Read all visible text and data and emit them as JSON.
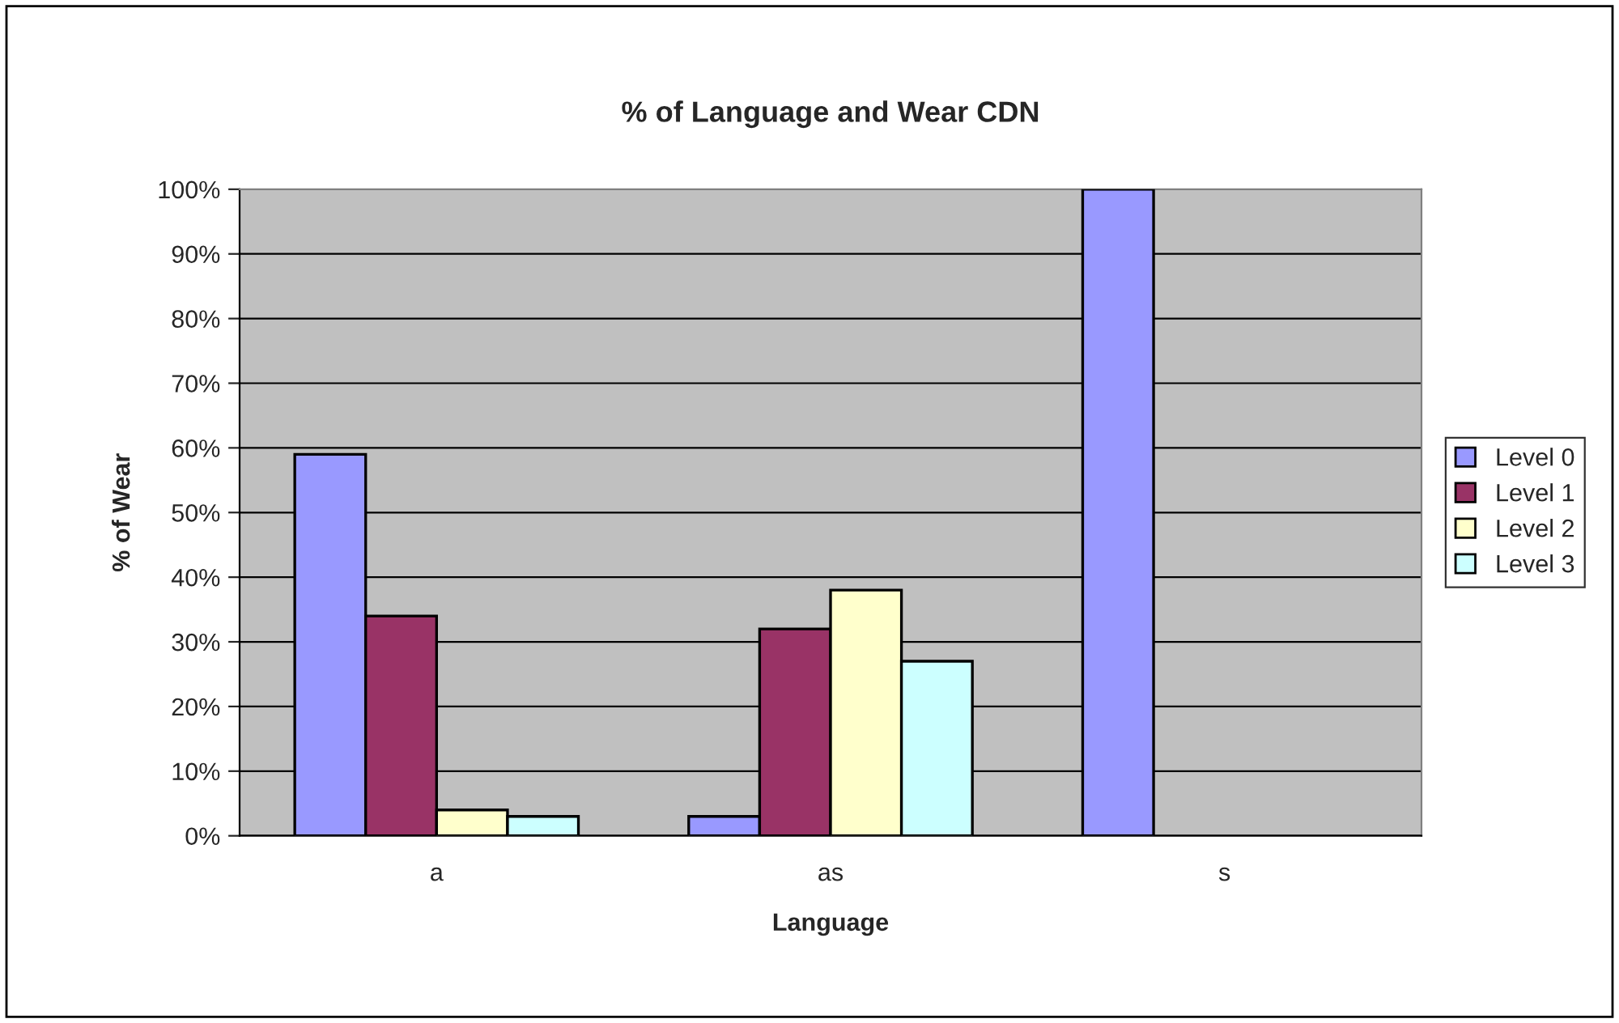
{
  "chart_data": {
    "type": "bar",
    "title": "% of Language and Wear CDN",
    "xlabel": "Language",
    "ylabel": "% of Wear",
    "categories": [
      "a",
      "as",
      "s"
    ],
    "series": [
      {
        "name": "Level 0",
        "color": "#9999ff",
        "values": [
          59,
          3,
          100
        ]
      },
      {
        "name": "Level 1",
        "color": "#993366",
        "values": [
          34,
          32,
          null
        ]
      },
      {
        "name": "Level 2",
        "color": "#ffffcc",
        "values": [
          4,
          38,
          null
        ]
      },
      {
        "name": "Level 3",
        "color": "#ccffff",
        "values": [
          3,
          27,
          null
        ]
      }
    ],
    "ylim": [
      0,
      100
    ],
    "yticks": [
      {
        "value": 0,
        "label": "0%"
      },
      {
        "value": 10,
        "label": "10%"
      },
      {
        "value": 20,
        "label": "20%"
      },
      {
        "value": 30,
        "label": "30%"
      },
      {
        "value": 40,
        "label": "40%"
      },
      {
        "value": 50,
        "label": "50%"
      },
      {
        "value": 60,
        "label": "60%"
      },
      {
        "value": 70,
        "label": "70%"
      },
      {
        "value": 80,
        "label": "80%"
      },
      {
        "value": 90,
        "label": "90%"
      },
      {
        "value": 100,
        "label": "100%"
      }
    ],
    "grid": "y",
    "legend": "right"
  }
}
